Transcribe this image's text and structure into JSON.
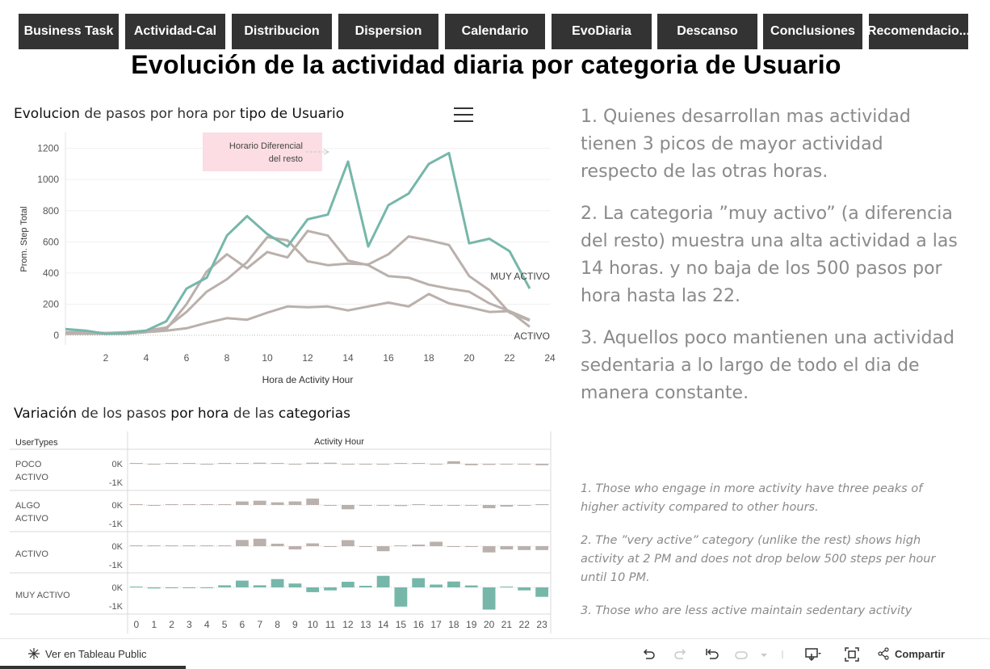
{
  "nav": {
    "tabs": [
      "Business Task",
      "Actividad-Cal",
      "Distribucion",
      "Dispersion",
      "Calendario",
      "EvoDiaria",
      "Descanso",
      "Conclusiones",
      "Recomendacio..."
    ]
  },
  "main_title": "Evolución de la actividad diaria por categoria de Usuario",
  "chart1": {
    "title_parts": [
      "Evolucion",
      " de pasos por hora por ",
      "tipo de Usuario"
    ],
    "annotation": [
      "Horario Diferencial",
      "del resto"
    ],
    "label_muy_activo": "MUY ACTIVO",
    "label_activo": "ACTIVO"
  },
  "chart2": {
    "title_parts": [
      "Variación",
      " de los pasos ",
      "por hora",
      " de las ",
      "categorias"
    ],
    "header_left": "UserTypes",
    "header_right": "Activity Hour",
    "rows": [
      {
        "label": [
          "POCO",
          "ACTIVO"
        ]
      },
      {
        "label": [
          "ALGO",
          "ACTIVO"
        ]
      },
      {
        "label": [
          "ACTIVO"
        ]
      },
      {
        "label": [
          "MUY ACTIVO"
        ]
      }
    ],
    "axis_labels": [
      "0K",
      "-1K"
    ]
  },
  "chart_data": [
    {
      "type": "line",
      "xlabel": "Hora de Activity Hour",
      "ylabel": "Prom. Step Total",
      "x": [
        0,
        1,
        2,
        3,
        4,
        5,
        6,
        7,
        8,
        9,
        10,
        11,
        12,
        13,
        14,
        15,
        16,
        17,
        18,
        19,
        20,
        21,
        22,
        23
      ],
      "x_ticks": [
        2,
        4,
        6,
        8,
        10,
        12,
        14,
        16,
        18,
        20,
        22,
        24
      ],
      "y_ticks": [
        0,
        200,
        400,
        600,
        800,
        1000,
        1200
      ],
      "ylim": [
        0,
        1250
      ],
      "xlim": [
        0,
        24
      ],
      "series": [
        {
          "name": "MUY ACTIVO",
          "color": "#76b7aa",
          "values": [
            40,
            30,
            10,
            15,
            30,
            90,
            300,
            370,
            640,
            765,
            650,
            570,
            745,
            775,
            1115,
            570,
            835,
            910,
            1100,
            1170,
            590,
            620,
            540,
            300
          ]
        },
        {
          "name": "",
          "color": "#bab0ac",
          "values": [
            20,
            20,
            15,
            20,
            30,
            50,
            150,
            280,
            360,
            470,
            630,
            610,
            475,
            450,
            460,
            455,
            520,
            635,
            610,
            580,
            380,
            290,
            145,
            95
          ]
        },
        {
          "name": "",
          "color": "#bab0ac",
          "values": [
            20,
            15,
            10,
            10,
            20,
            40,
            200,
            410,
            520,
            430,
            535,
            500,
            670,
            640,
            480,
            450,
            380,
            370,
            325,
            300,
            280,
            205,
            155,
            55
          ]
        },
        {
          "name": "ACTIVO",
          "color": "#bab0ac",
          "values": [
            10,
            10,
            10,
            10,
            20,
            30,
            45,
            80,
            110,
            100,
            145,
            185,
            180,
            185,
            160,
            185,
            210,
            185,
            265,
            205,
            180,
            150,
            155,
            100
          ]
        }
      ]
    },
    {
      "type": "bar",
      "xlabel": "Activity Hour",
      "ylabel": "UserTypes",
      "categories": [
        0,
        1,
        2,
        3,
        4,
        5,
        6,
        7,
        8,
        9,
        10,
        11,
        12,
        13,
        14,
        15,
        16,
        17,
        18,
        19,
        20,
        21,
        22,
        23
      ],
      "series": [
        {
          "name": "POCO ACTIVO",
          "color": "#bab0ac",
          "values": [
            0,
            -10,
            0,
            0,
            -10,
            10,
            20,
            60,
            20,
            -20,
            60,
            60,
            -20,
            -20,
            -10,
            10,
            0,
            -40,
            140,
            -80,
            -60,
            -40,
            -20,
            -80
          ]
        },
        {
          "name": "ALGO ACTIVO",
          "color": "#bab0ac",
          "values": [
            0,
            -10,
            10,
            0,
            0,
            40,
            200,
            240,
            150,
            200,
            360,
            -20,
            -240,
            -20,
            -10,
            -60,
            0,
            -20,
            -30,
            -20,
            -180,
            -90,
            -40,
            0
          ]
        },
        {
          "name": "ACTIVO",
          "color": "#bab0ac",
          "values": [
            0,
            0,
            0,
            0,
            20,
            30,
            350,
            420,
            140,
            -180,
            160,
            -40,
            340,
            -40,
            -280,
            0,
            90,
            250,
            -20,
            -10,
            -350,
            -180,
            -220,
            -220
          ]
        },
        {
          "name": "MUY ACTIVO",
          "color": "#76b7aa",
          "values": [
            0,
            -60,
            -20,
            -10,
            -20,
            120,
            380,
            120,
            470,
            220,
            -270,
            -170,
            320,
            90,
            650,
            -1080,
            520,
            160,
            330,
            110,
            -1250,
            30,
            -170,
            -530
          ]
        }
      ]
    }
  ],
  "insights": [
    "1.  Quienes desarrollan mas actividad tienen 3 picos de mayor actividad respecto de las otras horas.",
    "2. La categoria ”muy activo” (a diferencia del resto) muestra una alta actividad a las 14 horas. y no baja de los 500 pasos por hora hasta las 22.",
    "3. Aquellos poco mantienen una actividad sedentaria a lo largo de todo el dia de manera constante."
  ],
  "translations": [
    "1. Those who engage in more activity have three peaks of higher activity compared to other hours.",
    "2. The ”very active” category (unlike the rest) shows high activity at 2 PM and does not drop below 500 steps per hour until 10 PM.",
    "3. Those who are less active maintain sedentary activity"
  ],
  "footer": {
    "view_label": "Ver en Tableau Public",
    "share_label": "Compartir",
    "icons": [
      "undo-icon",
      "redo-icon",
      "revert-icon",
      "pause-icon",
      "download-icon",
      "fullscreen-icon",
      "share-icon"
    ]
  },
  "colors": {
    "accent": "#76b7aa",
    "neutral": "#bab0ac",
    "nav_bg": "#333333"
  }
}
